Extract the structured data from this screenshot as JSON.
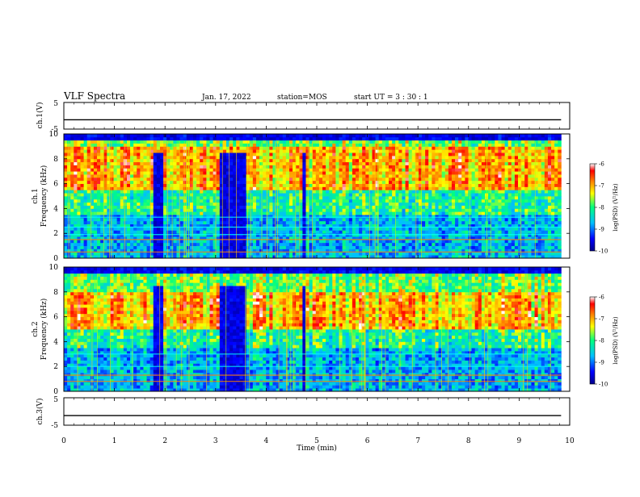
{
  "header": {
    "title": "VLF Spectra",
    "date": "Jan. 17, 2022",
    "station": "station=MOS",
    "start": "start  UT =   3  : 30 : 1"
  },
  "chart_data": {
    "type": "heatmap",
    "title": "VLF Spectra",
    "time_axis": {
      "label": "Time  (min)",
      "range": [
        0,
        10
      ],
      "ticks": [
        "0",
        "1",
        "2",
        "3",
        "4",
        "5",
        "6",
        "7",
        "8",
        "9",
        "10"
      ],
      "data_end_min": 9.83
    },
    "panels": [
      {
        "id": "ch1V",
        "type": "line",
        "ylabel": "ch.1(V)",
        "ylim": [
          -5,
          5
        ],
        "yticks": [
          "5",
          "-5"
        ],
        "level": -1.5
      },
      {
        "id": "ch1",
        "type": "heatmap",
        "ylabel": "ch.1",
        "ylabel2": "Frequency  (kHz)",
        "ylim": [
          0,
          10
        ],
        "yticks": [
          "0",
          "2",
          "4",
          "6",
          "8",
          "10"
        ],
        "colorbar": {
          "label": "log(PSD) (V²/Hz)",
          "range": [
            -10,
            -6
          ],
          "ticks": [
            "-6",
            "-7",
            "-8",
            "-9",
            "-10"
          ]
        },
        "dark_time_ranges_min": [
          [
            1.78,
            1.95
          ],
          [
            3.05,
            3.6
          ],
          [
            4.7,
            4.8
          ]
        ],
        "intense_band_khz": [
          5.5,
          9.0
        ],
        "line_freqs_khz": [
          0.5,
          1.5,
          1.9,
          2.5,
          3.3
        ]
      },
      {
        "id": "ch2",
        "type": "heatmap",
        "ylabel": "ch.2",
        "ylabel2": "Frequency  (kHz)",
        "ylim": [
          0,
          10
        ],
        "yticks": [
          "0",
          "2",
          "4",
          "6",
          "8",
          "10"
        ],
        "colorbar": {
          "label": "log(PSD) (V²/Hz)",
          "range": [
            -10,
            -6
          ],
          "ticks": [
            "-6",
            "-7",
            "-8",
            "-9",
            "-10"
          ]
        },
        "dark_time_ranges_min": [
          [
            1.78,
            1.95
          ],
          [
            3.05,
            3.6
          ],
          [
            4.7,
            4.8
          ]
        ],
        "intense_band_khz": [
          5.0,
          8.0
        ],
        "line_freqs_khz": [
          0.8,
          1.3,
          2.0,
          3.0
        ]
      },
      {
        "id": "ch3V",
        "type": "line",
        "ylabel": "ch.3(V)",
        "ylim": [
          -5,
          5
        ],
        "yticks": [
          "5",
          "-5"
        ],
        "level": -1.5
      }
    ]
  },
  "colors": {
    "colormap": [
      "#00008b",
      "#0000ff",
      "#00bfff",
      "#00ff80",
      "#ffff00",
      "#ff8000",
      "#ff0000",
      "#ffffff"
    ]
  }
}
